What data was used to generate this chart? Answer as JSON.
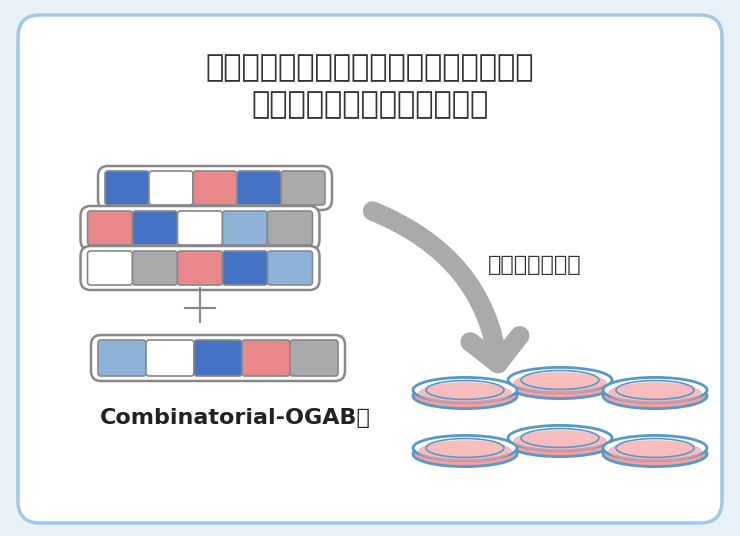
{
  "title_line1": "コンビナトリアルライブラリーを用いた",
  "title_line2": "最適な遺伝子パターンの探索",
  "screening_label": "スクリーニング",
  "ogab_label": "Combinatorial-OGAB法",
  "bg_color": "#ffffff",
  "card_bg": "#f8faff",
  "border_color": "#a0c8e8",
  "title_color": "#333333",
  "blue_dark": "#4472c4",
  "blue_light": "#8db4d8",
  "pink": "#e8888a",
  "gray": "#aaaaaa",
  "white": "#ffffff",
  "box_stroke": "#888888",
  "arrow_color": "#aaaaaa",
  "dish_fill": "#f5a0a0",
  "dish_stroke": "#5599cc",
  "row1_colors": [
    "#4472c4",
    "#ffffff",
    "#e8888a",
    "#4472c4",
    "#aaaaaa"
  ],
  "row2_colors": [
    "#e8888a",
    "#4472c4",
    "#ffffff",
    "#8db4d8",
    "#aaaaaa"
  ],
  "row3_colors": [
    "#ffffff",
    "#aaaaaa",
    "#e8888a",
    "#4472c4",
    "#8db4d8"
  ],
  "result_colors": [
    "#8db4d8",
    "#ffffff",
    "#4472c4",
    "#e8888a",
    "#aaaaaa"
  ]
}
